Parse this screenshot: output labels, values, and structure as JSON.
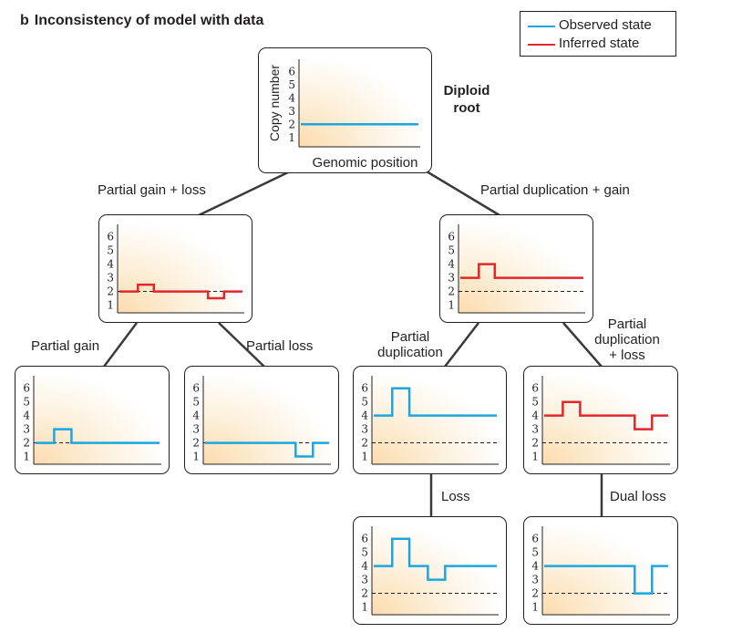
{
  "header": {
    "panel_letter": "b",
    "title": "Inconsistency of model with data"
  },
  "legend": {
    "items": [
      {
        "label": "Observed state",
        "color": "#1ca6e0"
      },
      {
        "label": "Inferred state",
        "color": "#e2262b"
      }
    ]
  },
  "root_label": {
    "line1": "Diploid",
    "line2": "root"
  },
  "axis": {
    "ylabel": "Copy number",
    "xlabel": "Genomic position",
    "ticks": [
      "1",
      "2",
      "3",
      "4",
      "5",
      "6"
    ]
  },
  "edges": {
    "left_top": "Partial gain + loss",
    "right_top": "Partial duplication + gain",
    "ll": "Partial gain",
    "lr": "Partial loss",
    "rl_line1": "Partial",
    "rl_line2": "duplication",
    "rr_line1": "Partial",
    "rr_line2": "duplication",
    "rr_line3": "+ loss",
    "rl_down": "Loss",
    "rr_down": "Dual loss"
  },
  "nodes": [
    {
      "id": "root",
      "state": "observed",
      "baseline": false,
      "profile": [
        [
          0,
          2
        ],
        [
          1,
          2
        ]
      ]
    },
    {
      "id": "gain_loss",
      "state": "inferred",
      "baseline": true,
      "profile": [
        [
          0,
          2
        ],
        [
          0.15,
          2
        ],
        [
          0.15,
          2.5
        ],
        [
          0.28,
          2.5
        ],
        [
          0.28,
          2
        ],
        [
          0.72,
          2
        ],
        [
          0.72,
          1.5
        ],
        [
          0.85,
          1.5
        ],
        [
          0.85,
          2
        ],
        [
          1,
          2
        ]
      ]
    },
    {
      "id": "dup_gain",
      "state": "inferred",
      "baseline": true,
      "profile": [
        [
          0,
          3
        ],
        [
          0.15,
          3
        ],
        [
          0.15,
          4
        ],
        [
          0.28,
          4
        ],
        [
          0.28,
          3
        ],
        [
          1,
          3
        ]
      ]
    },
    {
      "id": "partial_gain",
      "state": "observed",
      "baseline": true,
      "profile": [
        [
          0,
          2
        ],
        [
          0.15,
          2
        ],
        [
          0.15,
          3
        ],
        [
          0.29,
          3
        ],
        [
          0.29,
          2
        ],
        [
          1,
          2
        ]
      ]
    },
    {
      "id": "partial_loss",
      "state": "observed",
      "baseline": true,
      "profile": [
        [
          0,
          2
        ],
        [
          0.73,
          2
        ],
        [
          0.73,
          1
        ],
        [
          0.87,
          1
        ],
        [
          0.87,
          2
        ],
        [
          1,
          2
        ]
      ]
    },
    {
      "id": "partial_dup",
      "state": "observed",
      "baseline": true,
      "profile": [
        [
          0,
          4
        ],
        [
          0.15,
          4
        ],
        [
          0.15,
          6
        ],
        [
          0.29,
          6
        ],
        [
          0.29,
          4
        ],
        [
          1,
          4
        ]
      ]
    },
    {
      "id": "dup_loss",
      "state": "inferred",
      "baseline": true,
      "profile": [
        [
          0,
          4
        ],
        [
          0.15,
          4
        ],
        [
          0.15,
          5
        ],
        [
          0.29,
          5
        ],
        [
          0.29,
          4
        ],
        [
          0.73,
          4
        ],
        [
          0.73,
          3
        ],
        [
          0.87,
          3
        ],
        [
          0.87,
          4
        ],
        [
          1,
          4
        ]
      ]
    },
    {
      "id": "loss",
      "state": "observed",
      "baseline": true,
      "profile": [
        [
          0,
          4
        ],
        [
          0.15,
          4
        ],
        [
          0.15,
          6
        ],
        [
          0.29,
          6
        ],
        [
          0.29,
          4
        ],
        [
          0.44,
          4
        ],
        [
          0.44,
          3
        ],
        [
          0.58,
          3
        ],
        [
          0.58,
          4
        ],
        [
          1,
          4
        ]
      ]
    },
    {
      "id": "dual_loss",
      "state": "observed",
      "baseline": true,
      "profile": [
        [
          0,
          4
        ],
        [
          0.73,
          4
        ],
        [
          0.73,
          2
        ],
        [
          0.87,
          2
        ],
        [
          0.87,
          4
        ],
        [
          1,
          4
        ]
      ]
    }
  ]
}
